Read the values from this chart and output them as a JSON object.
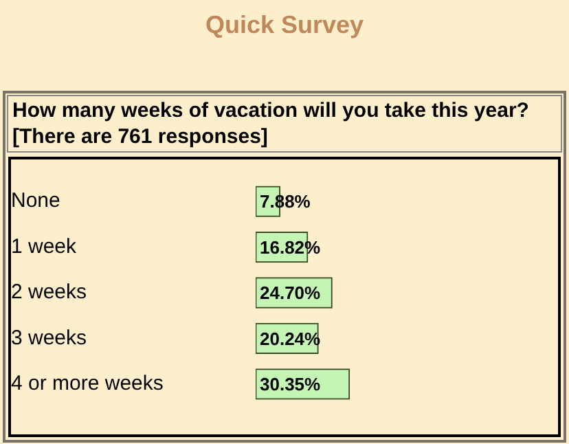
{
  "chart_data": {
    "type": "bar",
    "orientation": "horizontal",
    "title": "Quick Survey",
    "subtitle": "How many weeks of vacation will you take this year?\n[There are 761 responses]",
    "categories": [
      "None",
      "1 week",
      "2 weeks",
      "3 weeks",
      "4 or more weeks"
    ],
    "values": [
      7.88,
      16.82,
      24.7,
      20.24,
      30.35
    ],
    "value_labels": [
      "7.88%",
      "16.82%",
      "24.70%",
      "20.24%",
      "30.35%"
    ],
    "color": "#c4f5b4",
    "tick_labels": "y"
  }
}
